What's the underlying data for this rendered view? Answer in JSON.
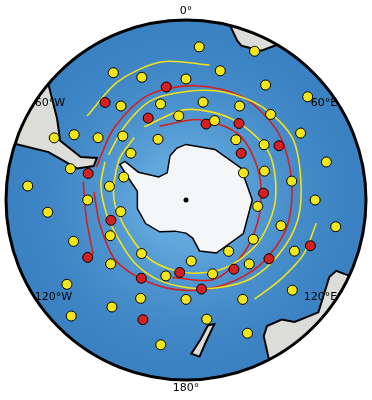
{
  "chart_data": {
    "type": "map",
    "latlim": [
      -90,
      -30
    ],
    "lon_ticks": [
      {
        "value": 0,
        "label": "0°"
      },
      {
        "value": 60,
        "label": "60°E"
      },
      {
        "value": 120,
        "label": "120°E"
      },
      {
        "value": 180,
        "label": "180°"
      },
      {
        "value": -120,
        "label": "120°W"
      },
      {
        "value": -60,
        "label": "60°W"
      }
    ],
    "tick_labels": false,
    "grid": false,
    "series": [
      {
        "type": "line",
        "color": "#f2e21c",
        "values": [
          [
            -60,
            -58
          ],
          [
            -40,
            -56
          ],
          [
            -20,
            -53
          ],
          [
            0,
            -52
          ],
          [
            20,
            -50
          ],
          [
            40,
            -48
          ],
          [
            60,
            -47
          ],
          [
            80,
            -49
          ],
          [
            100,
            -50
          ],
          [
            120,
            -52
          ],
          [
            140,
            -54
          ],
          [
            160,
            -57
          ],
          [
            180,
            -59
          ],
          [
            -160,
            -60
          ],
          [
            -140,
            -61
          ],
          [
            -120,
            -62
          ],
          [
            -100,
            -61
          ],
          [
            -80,
            -59
          ],
          [
            -65,
            -58
          ]
        ]
      },
      {
        "type": "line",
        "color": "#f2e21c",
        "values": [
          [
            -30,
            -60
          ],
          [
            0,
            -58
          ],
          [
            30,
            -57
          ],
          [
            60,
            -56
          ],
          [
            90,
            -58
          ],
          [
            120,
            -60
          ],
          [
            150,
            -62
          ],
          [
            180,
            -64
          ],
          [
            -150,
            -65
          ],
          [
            -120,
            -66
          ],
          [
            -90,
            -64
          ],
          [
            -60,
            -62
          ],
          [
            -40,
            -61
          ]
        ]
      },
      {
        "type": "line",
        "color": "#f2e21c",
        "values": [
          [
            -50,
            -45
          ],
          [
            -30,
            -43
          ],
          [
            -10,
            -42
          ],
          [
            10,
            -43
          ]
        ]
      },
      {
        "type": "line",
        "color": "#f2e21c",
        "values": [
          [
            100,
            -44
          ],
          [
            115,
            -45
          ],
          [
            130,
            -47
          ],
          [
            145,
            -48
          ]
        ]
      },
      {
        "type": "line",
        "color": "#d42020",
        "values": [
          [
            -70,
            -56
          ],
          [
            -45,
            -54
          ],
          [
            -20,
            -51
          ],
          [
            5,
            -50
          ],
          [
            30,
            -49
          ],
          [
            55,
            -50
          ],
          [
            80,
            -52
          ],
          [
            105,
            -53
          ],
          [
            130,
            -55
          ],
          [
            155,
            -57
          ],
          [
            180,
            -58
          ],
          [
            -155,
            -58
          ],
          [
            -130,
            -57
          ],
          [
            -105,
            -58
          ],
          [
            -85,
            -57
          ]
        ]
      },
      {
        "type": "line",
        "color": "#d42020",
        "values": [
          [
            -20,
            -62
          ],
          [
            10,
            -61
          ],
          [
            40,
            -60
          ],
          [
            70,
            -62
          ],
          [
            100,
            -63
          ],
          [
            130,
            -62
          ],
          [
            160,
            -60
          ],
          [
            -170,
            -62
          ]
        ]
      },
      {
        "type": "line",
        "color": "#d42020",
        "values": [
          [
            -120,
            -52
          ],
          [
            -100,
            -54
          ],
          [
            -80,
            -53
          ]
        ]
      },
      {
        "type": "scatter",
        "marker": "circle",
        "color": "#f5e61a",
        "values": [
          [
            -60,
            -45
          ],
          [
            -55,
            -52
          ],
          [
            -45,
            -58
          ],
          [
            -35,
            -50
          ],
          [
            -30,
            -40
          ],
          [
            -20,
            -45
          ],
          [
            -15,
            -55
          ],
          [
            -5,
            -60
          ],
          [
            0,
            -48
          ],
          [
            5,
            -38
          ],
          [
            10,
            -55
          ],
          [
            15,
            -44
          ],
          [
            20,
            -60
          ],
          [
            25,
            -35
          ],
          [
            30,
            -52
          ],
          [
            35,
            -42
          ],
          [
            40,
            -62
          ],
          [
            45,
            -48
          ],
          [
            50,
            -36
          ],
          [
            55,
            -56
          ],
          [
            60,
            -44
          ],
          [
            70,
            -60
          ],
          [
            75,
            -40
          ],
          [
            80,
            -52
          ],
          [
            90,
            -45
          ],
          [
            95,
            -64
          ],
          [
            100,
            -38
          ],
          [
            105,
            -55
          ],
          [
            115,
            -48
          ],
          [
            120,
            -62
          ],
          [
            130,
            -42
          ],
          [
            135,
            -58
          ],
          [
            140,
            -66
          ],
          [
            150,
            -50
          ],
          [
            155,
            -40
          ],
          [
            160,
            -62
          ],
          [
            170,
            -48
          ],
          [
            175,
            -68
          ],
          [
            180,
            -55
          ],
          [
            -170,
            -40
          ],
          [
            -165,
            -62
          ],
          [
            -155,
            -52
          ],
          [
            -145,
            -45
          ],
          [
            -140,
            -65
          ],
          [
            -130,
            -55
          ],
          [
            -125,
            -40
          ],
          [
            -115,
            -60
          ],
          [
            -110,
            -48
          ],
          [
            -100,
            -66
          ],
          [
            -95,
            -42
          ],
          [
            -90,
            -55
          ],
          [
            -85,
            -36
          ],
          [
            -80,
            -62
          ],
          [
            -75,
            -48
          ],
          [
            -70,
            -66
          ],
          [
            -65,
            -40
          ],
          [
            -50,
            -64
          ],
          [
            -25,
            -66
          ],
          [
            65,
            -67
          ],
          [
            -135,
            -35
          ]
        ]
      },
      {
        "type": "scatter",
        "marker": "circle",
        "color": "#d42020",
        "values": [
          [
            -40,
            -46
          ],
          [
            -10,
            -50
          ],
          [
            15,
            -62
          ],
          [
            35,
            -57
          ],
          [
            60,
            -52
          ],
          [
            85,
            -62
          ],
          [
            110,
            -44
          ],
          [
            125,
            -54
          ],
          [
            145,
            -60
          ],
          [
            170,
            -58
          ],
          [
            -175,
            -64
          ],
          [
            -150,
            -58
          ],
          [
            -120,
            -50
          ],
          [
            -105,
            -62
          ],
          [
            -75,
            -54
          ],
          [
            -25,
            -58
          ],
          [
            50,
            -64
          ],
          [
            -160,
            -46
          ]
        ]
      }
    ]
  }
}
